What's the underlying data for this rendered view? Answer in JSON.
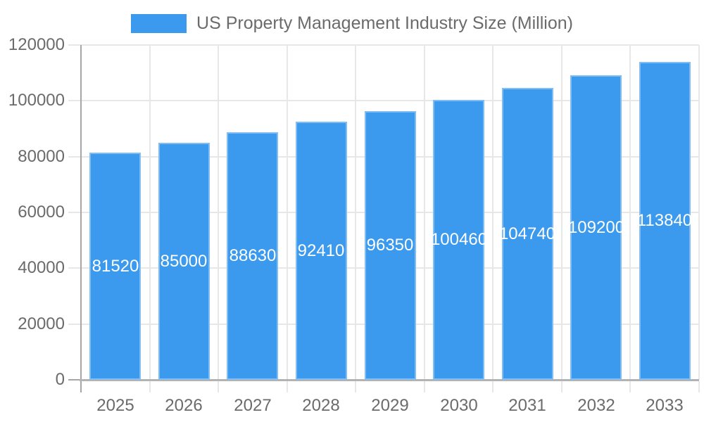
{
  "chart_data": {
    "type": "bar",
    "title": "US Property Management Industry Size (Million)",
    "categories": [
      "2025",
      "2026",
      "2027",
      "2028",
      "2029",
      "2030",
      "2031",
      "2032",
      "2033"
    ],
    "values": [
      81520,
      85000,
      88630,
      92410,
      96350,
      100460,
      104740,
      109200,
      113840
    ],
    "xlabel": "",
    "ylabel": "",
    "ylim": [
      0,
      120000
    ],
    "yticks": [
      0,
      20000,
      40000,
      60000,
      80000,
      100000,
      120000
    ],
    "grid": true,
    "legend_position": "top",
    "value_label_position": "inside-center",
    "colors": {
      "bar_fill": "#3b99ee",
      "bar_border": "#7fbdf3",
      "grid": "#e7e7e7",
      "axis": "#a6a6a6",
      "x_axis_line": "#b3b3b3",
      "text": "#6b6b6b",
      "value_label": "#ffffff",
      "background": "#ffffff"
    }
  }
}
